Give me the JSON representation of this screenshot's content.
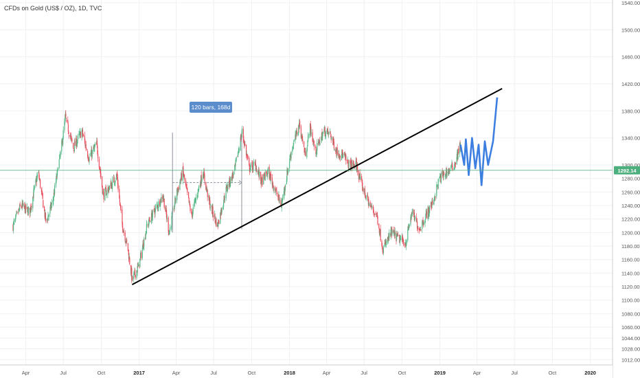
{
  "header": {
    "title": "CFDs on Gold (US$ / OZ), 1D, TVC"
  },
  "colors": {
    "up": "#53b987",
    "down": "#eb4d5c",
    "projection": "#3d7fe0",
    "trendline": "#000000",
    "current_price": "#4caf7d",
    "measure_badge": "#5b8ccc"
  },
  "measure": {
    "label": "120 bars, 168d"
  },
  "chart_data": {
    "type": "candlestick",
    "title": "CFDs on Gold (US$ / OZ), 1D, TVC",
    "y_axis": {
      "position": "right",
      "ylim": [
        1004,
        1540
      ],
      "ticks": [
        "1540.00",
        "1500.00",
        "1460.00",
        "1420.00",
        "1380.00",
        "1340.00",
        "1300.00",
        "1280.00",
        "1260.00",
        "1240.00",
        "1220.00",
        "1200.00",
        "1180.00",
        "1160.00",
        "1140.00",
        "1120.00",
        "1100.00",
        "1080.00",
        "1060.00",
        "1044.00",
        "1028.00",
        "1012.00"
      ]
    },
    "x_axis": {
      "ticks": [
        {
          "label": "Apr",
          "bold": false
        },
        {
          "label": "Jul",
          "bold": false
        },
        {
          "label": "Oct",
          "bold": false
        },
        {
          "label": "2017",
          "bold": true
        },
        {
          "label": "Apr",
          "bold": false
        },
        {
          "label": "Jul",
          "bold": false
        },
        {
          "label": "Oct",
          "bold": false
        },
        {
          "label": "2018",
          "bold": true
        },
        {
          "label": "Apr",
          "bold": false
        },
        {
          "label": "Jul",
          "bold": false
        },
        {
          "label": "Oct",
          "bold": false
        },
        {
          "label": "2019",
          "bold": true
        },
        {
          "label": "Apr",
          "bold": false
        },
        {
          "label": "Jul",
          "bold": false
        },
        {
          "label": "Oct",
          "bold": false
        },
        {
          "label": "2020",
          "bold": true
        }
      ]
    },
    "current_price": {
      "value": 1292.14,
      "label": "1292.14"
    },
    "price_path": [
      [
        "2016-03-01",
        1210
      ],
      [
        "2016-03-20",
        1240
      ],
      [
        "2016-04-10",
        1230
      ],
      [
        "2016-05-01",
        1290
      ],
      [
        "2016-05-20",
        1215
      ],
      [
        "2016-06-05",
        1245
      ],
      [
        "2016-06-25",
        1320
      ],
      [
        "2016-07-06",
        1370
      ],
      [
        "2016-07-25",
        1325
      ],
      [
        "2016-08-15",
        1350
      ],
      [
        "2016-09-01",
        1310
      ],
      [
        "2016-09-20",
        1330
      ],
      [
        "2016-10-06",
        1255
      ],
      [
        "2016-10-25",
        1270
      ],
      [
        "2016-11-08",
        1285
      ],
      [
        "2016-11-20",
        1215
      ],
      [
        "2016-12-05",
        1175
      ],
      [
        "2016-12-15",
        1130
      ],
      [
        "2016-12-31",
        1150
      ],
      [
        "2017-01-20",
        1210
      ],
      [
        "2017-02-10",
        1235
      ],
      [
        "2017-02-28",
        1255
      ],
      [
        "2017-03-15",
        1200
      ],
      [
        "2017-04-01",
        1255
      ],
      [
        "2017-04-17",
        1290
      ],
      [
        "2017-05-08",
        1225
      ],
      [
        "2017-06-05",
        1290
      ],
      [
        "2017-06-20",
        1245
      ],
      [
        "2017-07-10",
        1210
      ],
      [
        "2017-08-01",
        1265
      ],
      [
        "2017-08-20",
        1290
      ],
      [
        "2017-09-08",
        1350
      ],
      [
        "2017-09-25",
        1295
      ],
      [
        "2017-10-10",
        1300
      ],
      [
        "2017-10-25",
        1275
      ],
      [
        "2017-11-10",
        1290
      ],
      [
        "2017-12-12",
        1240
      ],
      [
        "2018-01-05",
        1320
      ],
      [
        "2018-01-25",
        1360
      ],
      [
        "2018-02-08",
        1315
      ],
      [
        "2018-02-20",
        1355
      ],
      [
        "2018-03-05",
        1320
      ],
      [
        "2018-03-25",
        1350
      ],
      [
        "2018-04-10",
        1345
      ],
      [
        "2018-04-25",
        1320
      ],
      [
        "2018-05-10",
        1315
      ],
      [
        "2018-05-25",
        1300
      ],
      [
        "2018-06-12",
        1300
      ],
      [
        "2018-06-25",
        1270
      ],
      [
        "2018-07-15",
        1240
      ],
      [
        "2018-08-01",
        1225
      ],
      [
        "2018-08-16",
        1175
      ],
      [
        "2018-09-05",
        1200
      ],
      [
        "2018-09-25",
        1190
      ],
      [
        "2018-10-10",
        1185
      ],
      [
        "2018-10-25",
        1230
      ],
      [
        "2018-11-12",
        1205
      ],
      [
        "2018-11-28",
        1225
      ],
      [
        "2018-12-15",
        1245
      ],
      [
        "2018-12-31",
        1280
      ],
      [
        "2019-01-20",
        1290
      ],
      [
        "2019-02-05",
        1300
      ],
      [
        "2019-02-20",
        1330
      ]
    ],
    "projection_path": [
      [
        "2019-02-20",
        1330
      ],
      [
        "2019-03-01",
        1300
      ],
      [
        "2019-03-05",
        1338
      ],
      [
        "2019-03-12",
        1285
      ],
      [
        "2019-03-20",
        1340
      ],
      [
        "2019-03-28",
        1295
      ],
      [
        "2019-04-05",
        1330
      ],
      [
        "2019-04-12",
        1270
      ],
      [
        "2019-04-20",
        1335
      ],
      [
        "2019-04-28",
        1300
      ],
      [
        "2019-05-10",
        1335
      ],
      [
        "2019-05-20",
        1400
      ]
    ],
    "trendline": {
      "from": [
        "2016-12-15",
        1123
      ],
      "to": [
        "2019-06-01",
        1413
      ]
    },
    "measure_tool": {
      "start": [
        "2017-03-23",
        1274
      ],
      "end": [
        "2017-09-07",
        1274
      ],
      "vertical_line_1": {
        "date": "2017-03-23",
        "high": 1348,
        "low": 1200
      },
      "vertical_line_2": {
        "date": "2017-09-07",
        "high": 1345,
        "low": 1205
      }
    }
  }
}
